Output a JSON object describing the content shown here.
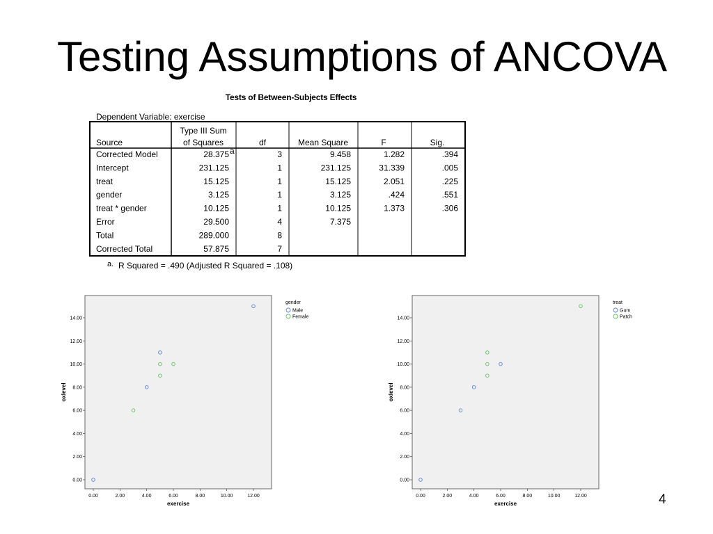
{
  "slide": {
    "title": "Testing Assumptions of ANCOVA",
    "page_number": "4"
  },
  "anova_table": {
    "title": "Tests of Between-Subjects Effects",
    "dependent_variable": "Dependent Variable: exercise",
    "headers": {
      "source": "Source",
      "ss_line1": "Type III Sum",
      "ss_line2": "of Squares",
      "df": "df",
      "ms": "Mean Square",
      "f": "F",
      "sig": "Sig."
    },
    "rows": [
      {
        "source": "Corrected Model",
        "ss": "28.375",
        "ss_sup": "a",
        "df": "3",
        "ms": "9.458",
        "f": "1.282",
        "sig": ".394"
      },
      {
        "source": "Intercept",
        "ss": "231.125",
        "ss_sup": "",
        "df": "1",
        "ms": "231.125",
        "f": "31.339",
        "sig": ".005"
      },
      {
        "source": "treat",
        "ss": "15.125",
        "ss_sup": "",
        "df": "1",
        "ms": "15.125",
        "f": "2.051",
        "sig": ".225"
      },
      {
        "source": "gender",
        "ss": "3.125",
        "ss_sup": "",
        "df": "1",
        "ms": "3.125",
        "f": ".424",
        "sig": ".551"
      },
      {
        "source": "treat * gender",
        "ss": "10.125",
        "ss_sup": "",
        "df": "1",
        "ms": "10.125",
        "f": "1.373",
        "sig": ".306"
      },
      {
        "source": "Error",
        "ss": "29.500",
        "ss_sup": "",
        "df": "4",
        "ms": "7.375",
        "f": "",
        "sig": ""
      },
      {
        "source": "Total",
        "ss": "289.000",
        "ss_sup": "",
        "df": "8",
        "ms": "",
        "f": "",
        "sig": ""
      },
      {
        "source": "Corrected Total",
        "ss": "57.875",
        "ss_sup": "",
        "df": "7",
        "ms": "",
        "f": "",
        "sig": ""
      }
    ],
    "footnote_mark": "a.",
    "footnote": "R Squared = .490 (Adjusted R Squared = .108)"
  },
  "chart_data": [
    {
      "type": "scatter",
      "title": "",
      "xlabel": "exercise",
      "ylabel": "oxlevel",
      "xlim": [
        0,
        12
      ],
      "ylim": [
        0,
        14
      ],
      "x_ticks": [
        "0.00",
        "2.00",
        "4.00",
        "6.00",
        "8.00",
        "10.00",
        "12.00"
      ],
      "y_ticks": [
        "0.00",
        "2.00",
        "4.00",
        "6.00",
        "8.00",
        "10.00",
        "12.00",
        "14.00"
      ],
      "grid": false,
      "background": "#f0f0f0",
      "legend_title": "gender",
      "legend_position": "top-right-outside",
      "series": [
        {
          "name": "Male",
          "color": "#5b7fd6",
          "points": [
            [
              0,
              0
            ],
            [
              4,
              8
            ],
            [
              5,
              11
            ],
            [
              12,
              15
            ]
          ]
        },
        {
          "name": "Female",
          "color": "#5cc45c",
          "points": [
            [
              3,
              6
            ],
            [
              5,
              9
            ],
            [
              5,
              10
            ],
            [
              6,
              10
            ]
          ]
        }
      ]
    },
    {
      "type": "scatter",
      "title": "",
      "xlabel": "exercise",
      "ylabel": "oxlevel",
      "xlim": [
        0,
        12
      ],
      "ylim": [
        0,
        14
      ],
      "x_ticks": [
        "0.00",
        "2.00",
        "4.00",
        "6.00",
        "8.00",
        "10.00",
        "12.00"
      ],
      "y_ticks": [
        "0.00",
        "2.00",
        "4.00",
        "6.00",
        "8.00",
        "10.00",
        "12.00",
        "14.00"
      ],
      "grid": false,
      "background": "#f0f0f0",
      "legend_title": "treat",
      "legend_position": "top-right-outside",
      "series": [
        {
          "name": "Gum",
          "color": "#5b7fd6",
          "points": [
            [
              0,
              0
            ],
            [
              3,
              6
            ],
            [
              4,
              8
            ],
            [
              6,
              10
            ]
          ]
        },
        {
          "name": "Patch",
          "color": "#5cc45c",
          "points": [
            [
              5,
              9
            ],
            [
              5,
              10
            ],
            [
              5,
              11
            ],
            [
              12,
              15
            ]
          ]
        }
      ]
    }
  ]
}
